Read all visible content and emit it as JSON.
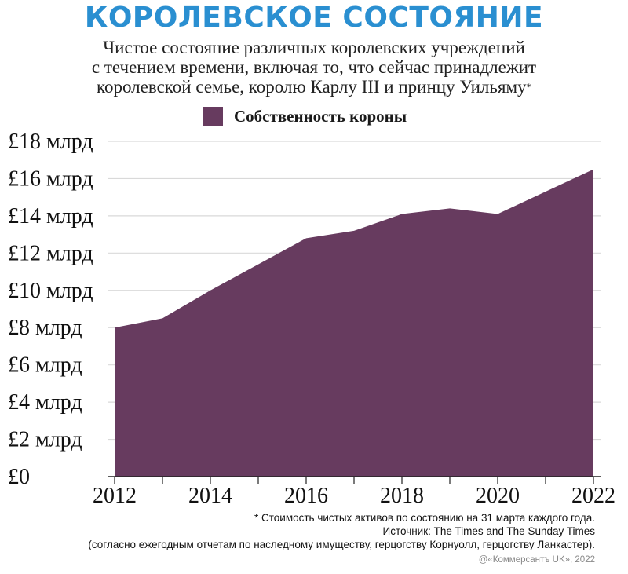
{
  "title": "КОРОЛЕВСКОЕ СОСТОЯНИЕ",
  "subtitle": {
    "line1": "Чистое состояние различных королевских учреждений",
    "line2": "с течением времени, включая то, что сейчас принадлежит",
    "line3": "королевской семье, королю Карлу III и принцу Уильяму",
    "star": "*"
  },
  "colors": {
    "title": "#2a8fd1",
    "area": "#673b5f",
    "grid": "#d9d9d9",
    "axis": "#222222"
  },
  "chart_data": {
    "type": "area",
    "legend": "Собственность короны",
    "legend_position": "top-center",
    "grid": true,
    "ylim": [
      0,
      18
    ],
    "xlim": [
      2012,
      2022
    ],
    "y_ticks": [
      {
        "v": 18,
        "label": "£18 млрд"
      },
      {
        "v": 16,
        "label": "£16 млрд"
      },
      {
        "v": 14,
        "label": "£14 млрд"
      },
      {
        "v": 12,
        "label": "£12 млрд"
      },
      {
        "v": 10,
        "label": "£10 млрд"
      },
      {
        "v": 8,
        "label": "£8 млрд"
      },
      {
        "v": 6,
        "label": "£6 млрд"
      },
      {
        "v": 4,
        "label": "£4 млрд"
      },
      {
        "v": 2,
        "label": "£2 млрд"
      },
      {
        "v": 0,
        "label": "£0"
      }
    ],
    "x_ticks": [
      {
        "v": 2012,
        "label": "2012"
      },
      {
        "v": 2014,
        "label": "2014"
      },
      {
        "v": 2016,
        "label": "2016"
      },
      {
        "v": 2018,
        "label": "2018"
      },
      {
        "v": 2020,
        "label": "2020"
      },
      {
        "v": 2022,
        "label": "2022"
      }
    ],
    "x_minor_ticks": [
      2013,
      2015,
      2017,
      2019,
      2021
    ],
    "series": [
      {
        "name": "Собственность короны",
        "x": [
          2012,
          2013,
          2014,
          2015,
          2016,
          2017,
          2018,
          2019,
          2020,
          2021,
          2022
        ],
        "values": [
          8.0,
          8.5,
          10.0,
          11.4,
          12.8,
          13.2,
          14.1,
          14.4,
          14.1,
          15.3,
          16.5
        ]
      }
    ]
  },
  "notes": {
    "line1": "* Стоимость чистых активов по состоянию на 31 марта каждого года.",
    "line2": "Источник: The Times and The Sunday Times",
    "line3": "(согласно ежегодным отчетам по наследному имуществу, герцогству Корнуолл, герцогству Ланкастер)."
  },
  "credit": "@«Коммерсантъ UK», 2022"
}
